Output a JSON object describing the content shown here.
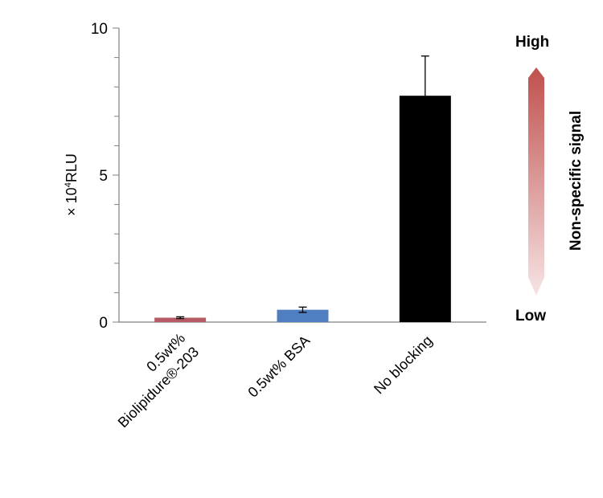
{
  "chart_data": {
    "type": "bar",
    "ylabel_prefix": "× 10",
    "ylabel_exp": "4",
    "ylabel_unit": "RLU",
    "ylim": [
      0,
      10
    ],
    "yticks": [
      "0",
      "5",
      "10"
    ],
    "categories": [
      {
        "lines": [
          "0.5wt%",
          "Biolipidure®-203"
        ]
      },
      {
        "lines": [
          "0.5wt% BSA"
        ]
      },
      {
        "lines": [
          "No blocking"
        ]
      }
    ],
    "values": [
      0.15,
      0.42,
      7.7
    ],
    "errors": [
      0.03,
      0.09,
      1.35
    ],
    "colors": [
      "#b65b63",
      "#4f7fc1",
      "#000000"
    ],
    "legend_arrow": {
      "top_label": "High",
      "bottom_label": "Low",
      "side_label": "Non-specific signal",
      "color_top": "#c0504d",
      "color_bottom": "#f6e4e4"
    }
  }
}
